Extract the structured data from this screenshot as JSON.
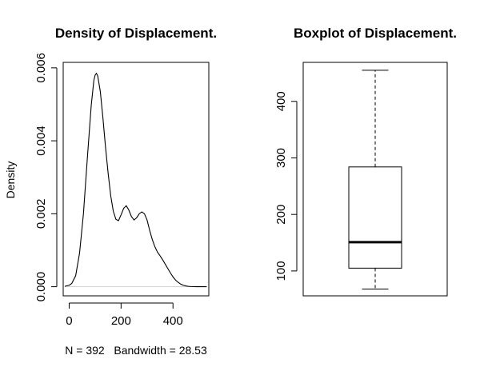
{
  "chart_data": [
    {
      "type": "line",
      "title": "Density of Displacement.",
      "xlabel": "N = 392   Bandwidth = 28.53",
      "ylabel": "Density",
      "xlim": [
        -23,
        538
      ],
      "ylim": [
        -0.00025,
        0.00615
      ],
      "x_ticks": [
        0,
        200,
        400
      ],
      "x_tick_labels": [
        "0",
        "200",
        "400"
      ],
      "y_ticks": [
        0,
        0.002,
        0.004,
        0.006
      ],
      "y_tick_labels": [
        "0.000",
        "0.002",
        "0.004",
        "0.006"
      ],
      "grid": false,
      "legend": "none",
      "baseline": 0,
      "series": [
        {
          "x": [
            -17,
            0,
            10,
            25,
            40,
            55,
            70,
            85,
            95,
            100,
            105,
            110,
            120,
            130,
            140,
            150,
            160,
            170,
            180,
            190,
            200,
            210,
            220,
            230,
            240,
            250,
            260,
            270,
            280,
            290,
            300,
            310,
            320,
            330,
            340,
            350,
            360,
            370,
            380,
            390,
            400,
            410,
            420,
            430,
            440,
            450,
            460,
            470,
            480,
            490,
            500,
            510,
            520,
            530
          ],
          "y": [
            1e-05,
            4e-05,
            9e-05,
            0.0003,
            0.00092,
            0.002,
            0.00352,
            0.00497,
            0.00565,
            0.0058,
            0.00585,
            0.00578,
            0.00535,
            0.00463,
            0.00383,
            0.00312,
            0.0025,
            0.00207,
            0.00185,
            0.00181,
            0.00197,
            0.00215,
            0.00222,
            0.0021,
            0.00192,
            0.00183,
            0.00189,
            0.002,
            0.00205,
            0.002,
            0.00183,
            0.00155,
            0.0013,
            0.0011,
            0.00095,
            0.00085,
            0.00074,
            0.00062,
            0.0005,
            0.00038,
            0.00027,
            0.00018,
            0.00012,
            7e-05,
            4e-05,
            2e-05,
            1e-05,
            5e-06,
            2e-06,
            1e-06,
            5e-07,
            2e-07,
            1e-07,
            0
          ]
        }
      ]
    },
    {
      "type": "boxplot",
      "title": "Boxplot of Displacement.",
      "ylim": [
        56,
        469
      ],
      "y_ticks": [
        100,
        200,
        300,
        400
      ],
      "y_tick_labels": [
        "100",
        "200",
        "300",
        "400"
      ],
      "grid": false,
      "legend": "none",
      "stats": {
        "min": 68,
        "q1": 105,
        "median": 151,
        "q3": 284,
        "max": 455
      }
    }
  ]
}
